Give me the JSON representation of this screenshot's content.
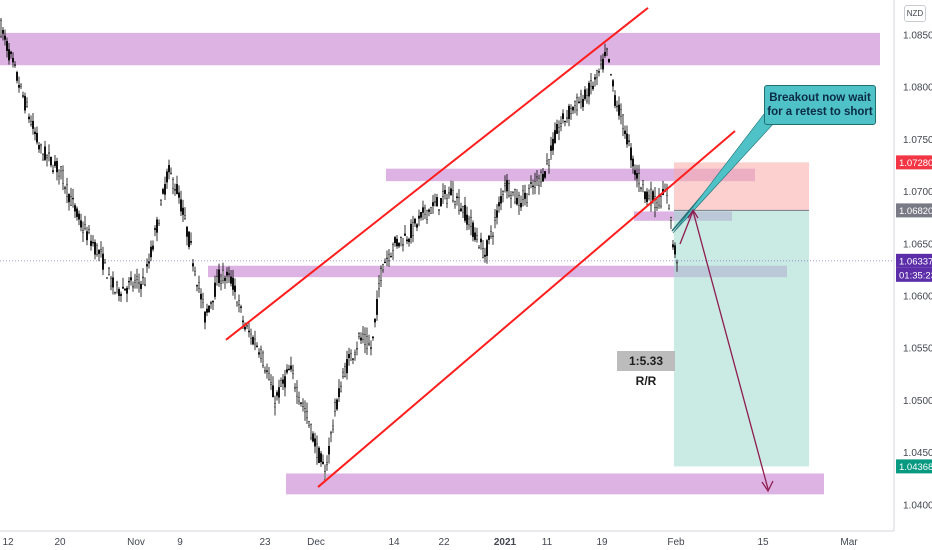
{
  "chart_data": {
    "type": "candlestick",
    "instrument_currency": "NZD",
    "y_axis": {
      "ticks": [
        "1.08500",
        "1.08000",
        "1.07500",
        "1.07000",
        "1.06500",
        "1.06000",
        "1.05500",
        "1.05000",
        "1.04500",
        "1.04000"
      ],
      "ylim": [
        1.0394,
        1.088
      ]
    },
    "x_axis": {
      "ticks": [
        "12",
        "20",
        "Nov",
        "9",
        "23",
        "Dec",
        "14",
        "22",
        "2021",
        "11",
        "19",
        "Feb",
        "15",
        "Mar"
      ]
    },
    "price_labels": [
      {
        "value": "1.07280",
        "role": "take-profit-zone-top",
        "color": "#f23645"
      },
      {
        "value": "1.06820",
        "role": "entry",
        "color": "#787b86"
      },
      {
        "value": "1.06337",
        "role": "last-price",
        "color": "#5b2da8"
      },
      {
        "value": "01:35:23",
        "role": "bar-countdown",
        "color": "#5b2da8"
      },
      {
        "value": "1.04368",
        "role": "target",
        "color": "#089981"
      }
    ],
    "zones": [
      {
        "name": "resistance-top",
        "from": 1.0821,
        "to": 1.0852
      },
      {
        "name": "mid-resistance",
        "from": 1.071,
        "to": 1.0722
      },
      {
        "name": "retest-zone",
        "from": 1.0672,
        "to": 1.0681
      },
      {
        "name": "support-mid",
        "from": 1.0618,
        "to": 1.0629
      },
      {
        "name": "support-bottom",
        "from": 1.041,
        "to": 1.043
      }
    ],
    "channel_lines": [
      {
        "name": "channel-upper",
        "x1": 226,
        "x2": 648,
        "y1": 1.0558,
        "y2": 1.0876
      },
      {
        "name": "channel-lower",
        "x1": 318,
        "x2": 735,
        "y1": 1.0417,
        "y2": 1.0758
      }
    ],
    "position": {
      "entry": 1.0682,
      "stop": 1.0728,
      "target": 1.04368,
      "ratio": "1:5.33 R/R"
    },
    "callout": {
      "line1": "Breakout now wait",
      "line2": "for a retest to short"
    },
    "ohlc_anchors": [
      [
        0,
        1.086
      ],
      [
        20,
        1.08
      ],
      [
        40,
        1.074
      ],
      [
        60,
        1.072
      ],
      [
        80,
        1.067
      ],
      [
        100,
        1.064
      ],
      [
        115,
        1.0605
      ],
      [
        130,
        1.061
      ],
      [
        145,
        1.0615
      ],
      [
        160,
        1.068
      ],
      [
        168,
        1.072
      ],
      [
        178,
        1.07
      ],
      [
        190,
        1.065
      ],
      [
        205,
        1.058
      ],
      [
        220,
        1.062
      ],
      [
        232,
        1.0615
      ],
      [
        245,
        1.057
      ],
      [
        260,
        1.055
      ],
      [
        275,
        1.05
      ],
      [
        290,
        1.053
      ],
      [
        305,
        1.049
      ],
      [
        318,
        1.045
      ],
      [
        325,
        1.043
      ],
      [
        335,
        1.049
      ],
      [
        345,
        1.053
      ],
      [
        360,
        1.056
      ],
      [
        372,
        1.055
      ],
      [
        382,
        1.063
      ],
      [
        395,
        1.065
      ],
      [
        410,
        1.066
      ],
      [
        425,
        1.068
      ],
      [
        440,
        1.069
      ],
      [
        452,
        1.07
      ],
      [
        465,
        1.068
      ],
      [
        485,
        1.064
      ],
      [
        495,
        1.067
      ],
      [
        505,
        1.071
      ],
      [
        518,
        1.069
      ],
      [
        530,
        1.07
      ],
      [
        545,
        1.072
      ],
      [
        558,
        1.076
      ],
      [
        572,
        1.078
      ],
      [
        585,
        1.079
      ],
      [
        598,
        1.081
      ],
      [
        607,
        1.0832
      ],
      [
        615,
        1.079
      ],
      [
        625,
        1.076
      ],
      [
        635,
        1.072
      ],
      [
        645,
        1.07
      ],
      [
        657,
        1.069
      ],
      [
        668,
        1.07
      ],
      [
        673,
        1.065
      ],
      [
        678,
        1.0634
      ]
    ]
  }
}
